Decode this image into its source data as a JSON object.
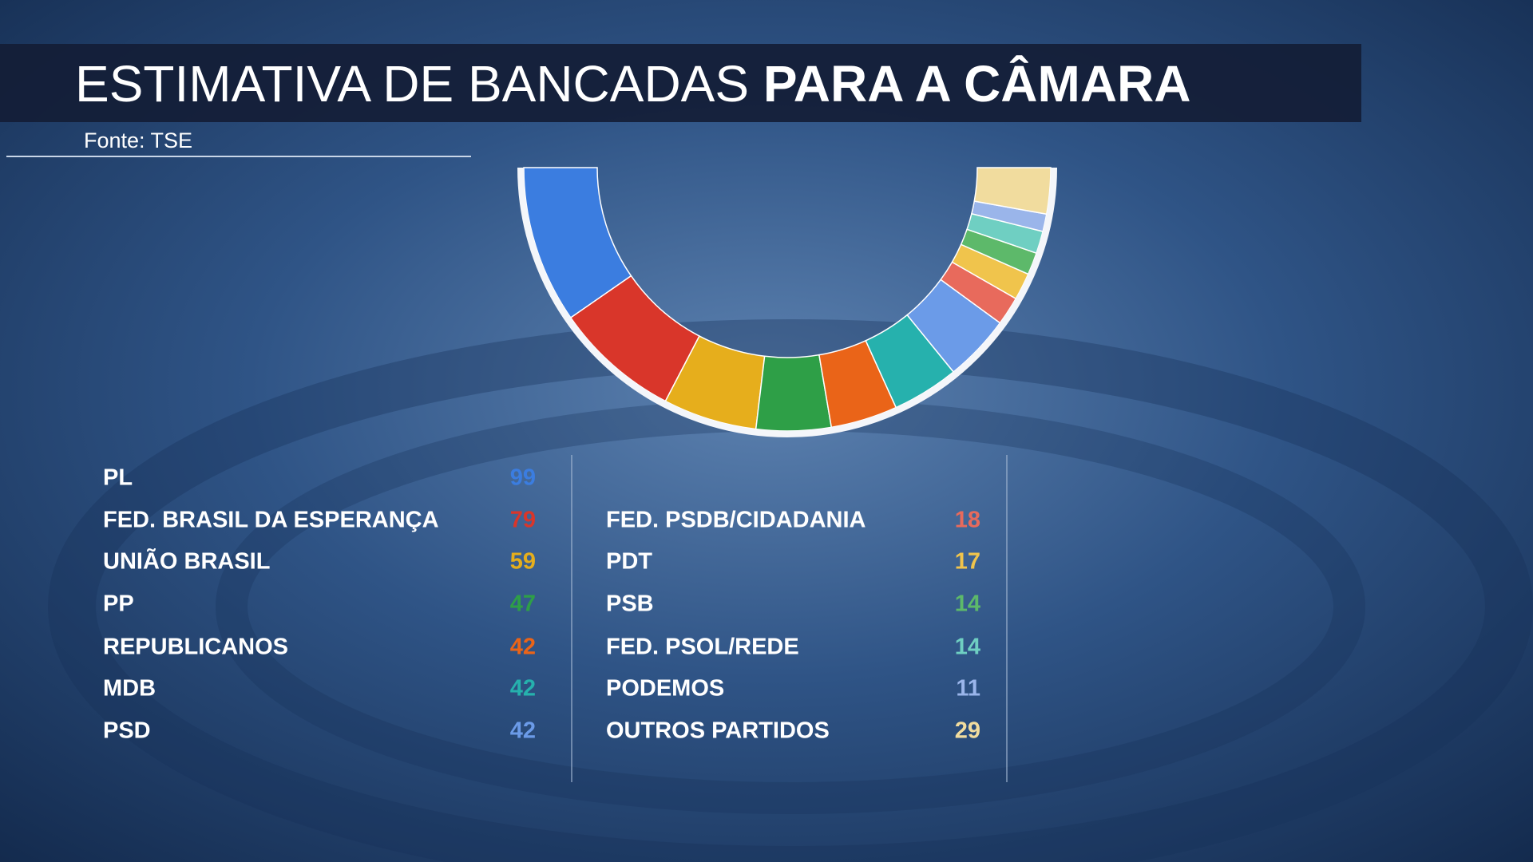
{
  "chart_data": {
    "type": "semicircle",
    "title": "ESTIMATIVA DE BANCADAS",
    "title_emphasis": "PARA A CÂMARA",
    "source": "Fonte: TSE",
    "categories": [
      "PL",
      "FED. BRASIL DA ESPERANÇA",
      "UNIÃO BRASIL",
      "PP",
      "REPUBLICANOS",
      "MDB",
      "PSD",
      "FED. PSDB/CIDADANIA",
      "PDT",
      "PSB",
      "FED. PSOL/REDE",
      "PODEMOS",
      "OUTROS PARTIDOS"
    ],
    "values": [
      99,
      79,
      59,
      47,
      42,
      42,
      42,
      18,
      17,
      14,
      14,
      11,
      29
    ],
    "colors": [
      "#3b7de0",
      "#d9362a",
      "#e6ae1c",
      "#2e9f47",
      "#ea6418",
      "#26b1ad",
      "#6b9be8",
      "#e86a5c",
      "#f0c44c",
      "#5db96a",
      "#6fcfc2",
      "#9ab5ea",
      "#f1dc9e"
    ]
  }
}
